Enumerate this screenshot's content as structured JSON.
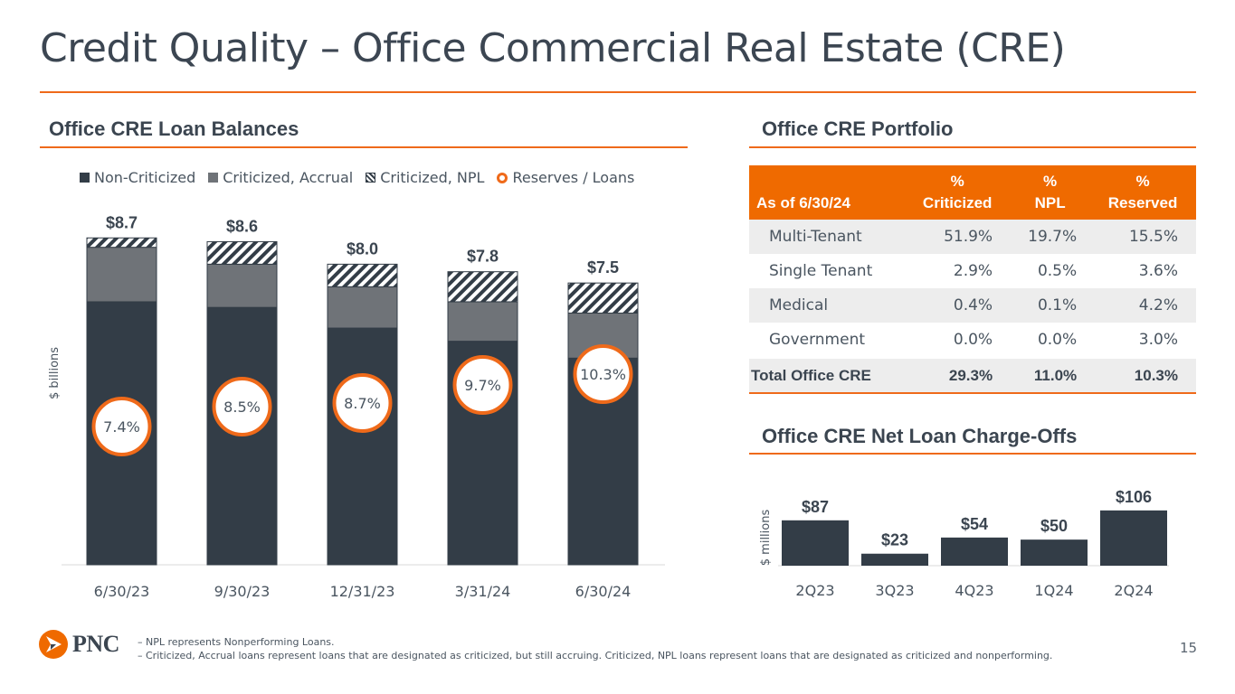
{
  "title": "Credit Quality – Office Commercial Real Estate (CRE)",
  "colors": {
    "accent": "#ef6a1a",
    "non_criticized": "#333d47",
    "criticized_accrual": "#6f7378",
    "header_orange": "#ef6a00",
    "text": "#3b4550"
  },
  "sections": {
    "loan_balances": "Office CRE Loan Balances",
    "portfolio": "Office CRE Portfolio",
    "charge_offs": "Office CRE Net Loan Charge-Offs"
  },
  "legend": {
    "non_criticized": "Non-Criticized",
    "criticized_accrual": "Criticized, Accrual",
    "criticized_npl": "Criticized, NPL",
    "reserves": "Reserves / Loans"
  },
  "chart_data": [
    {
      "type": "bar",
      "stacked": true,
      "title": "Office CRE Loan Balances",
      "ylabel": "$ billions",
      "ylim": [
        0,
        9.5
      ],
      "categories": [
        "6/30/23",
        "9/30/23",
        "12/31/23",
        "3/31/24",
        "6/30/24"
      ],
      "series": [
        {
          "name": "Non-Criticized",
          "values": [
            7.0,
            6.85,
            6.3,
            5.95,
            5.5
          ]
        },
        {
          "name": "Criticized, Accrual",
          "values": [
            1.45,
            1.15,
            1.1,
            1.05,
            1.2
          ]
        },
        {
          "name": "Criticized, NPL",
          "values": [
            0.25,
            0.6,
            0.6,
            0.8,
            0.8
          ]
        }
      ],
      "totals": [
        "$8.7",
        "$8.6",
        "$8.0",
        "$7.8",
        "$7.5"
      ],
      "reserves_to_loans": [
        "7.4%",
        "8.5%",
        "8.7%",
        "9.7%",
        "10.3%"
      ],
      "reserves_values": [
        7.4,
        8.5,
        8.7,
        9.7,
        10.3
      ]
    },
    {
      "type": "bar",
      "title": "Office CRE Net Loan Charge-Offs",
      "ylabel": "$ millions",
      "ylim": [
        0,
        130
      ],
      "categories": [
        "2Q23",
        "3Q23",
        "4Q23",
        "1Q24",
        "2Q24"
      ],
      "values": [
        87,
        23,
        54,
        50,
        106
      ],
      "labels": [
        "$87",
        "$23",
        "$54",
        "$50",
        "$106"
      ]
    }
  ],
  "portfolio_table": {
    "header": {
      "as_of": "As of 6/30/24",
      "criticized_l1": "%",
      "criticized_l2": "Criticized",
      "npl_l1": "%",
      "npl_l2": "NPL",
      "reserved_l1": "%",
      "reserved_l2": "Reserved"
    },
    "rows": [
      {
        "label": "Multi-Tenant",
        "criticized": "51.9%",
        "npl": "19.7%",
        "reserved": "15.5%"
      },
      {
        "label": "Single Tenant",
        "criticized": "2.9%",
        "npl": "0.5%",
        "reserved": "3.6%"
      },
      {
        "label": "Medical",
        "criticized": "0.4%",
        "npl": "0.1%",
        "reserved": "4.2%"
      },
      {
        "label": "Government",
        "criticized": "0.0%",
        "npl": "0.0%",
        "reserved": "3.0%"
      }
    ],
    "total": {
      "label": "Total Office CRE",
      "criticized": "29.3%",
      "npl": "11.0%",
      "reserved": "10.3%"
    }
  },
  "logo_text": "PNC",
  "footnotes": [
    "– NPL represents Nonperforming Loans.",
    "– Criticized, Accrual loans represent loans that are designated as criticized, but still accruing. Criticized, NPL loans represent loans that are designated as criticized and nonperforming."
  ],
  "page_number": "15"
}
